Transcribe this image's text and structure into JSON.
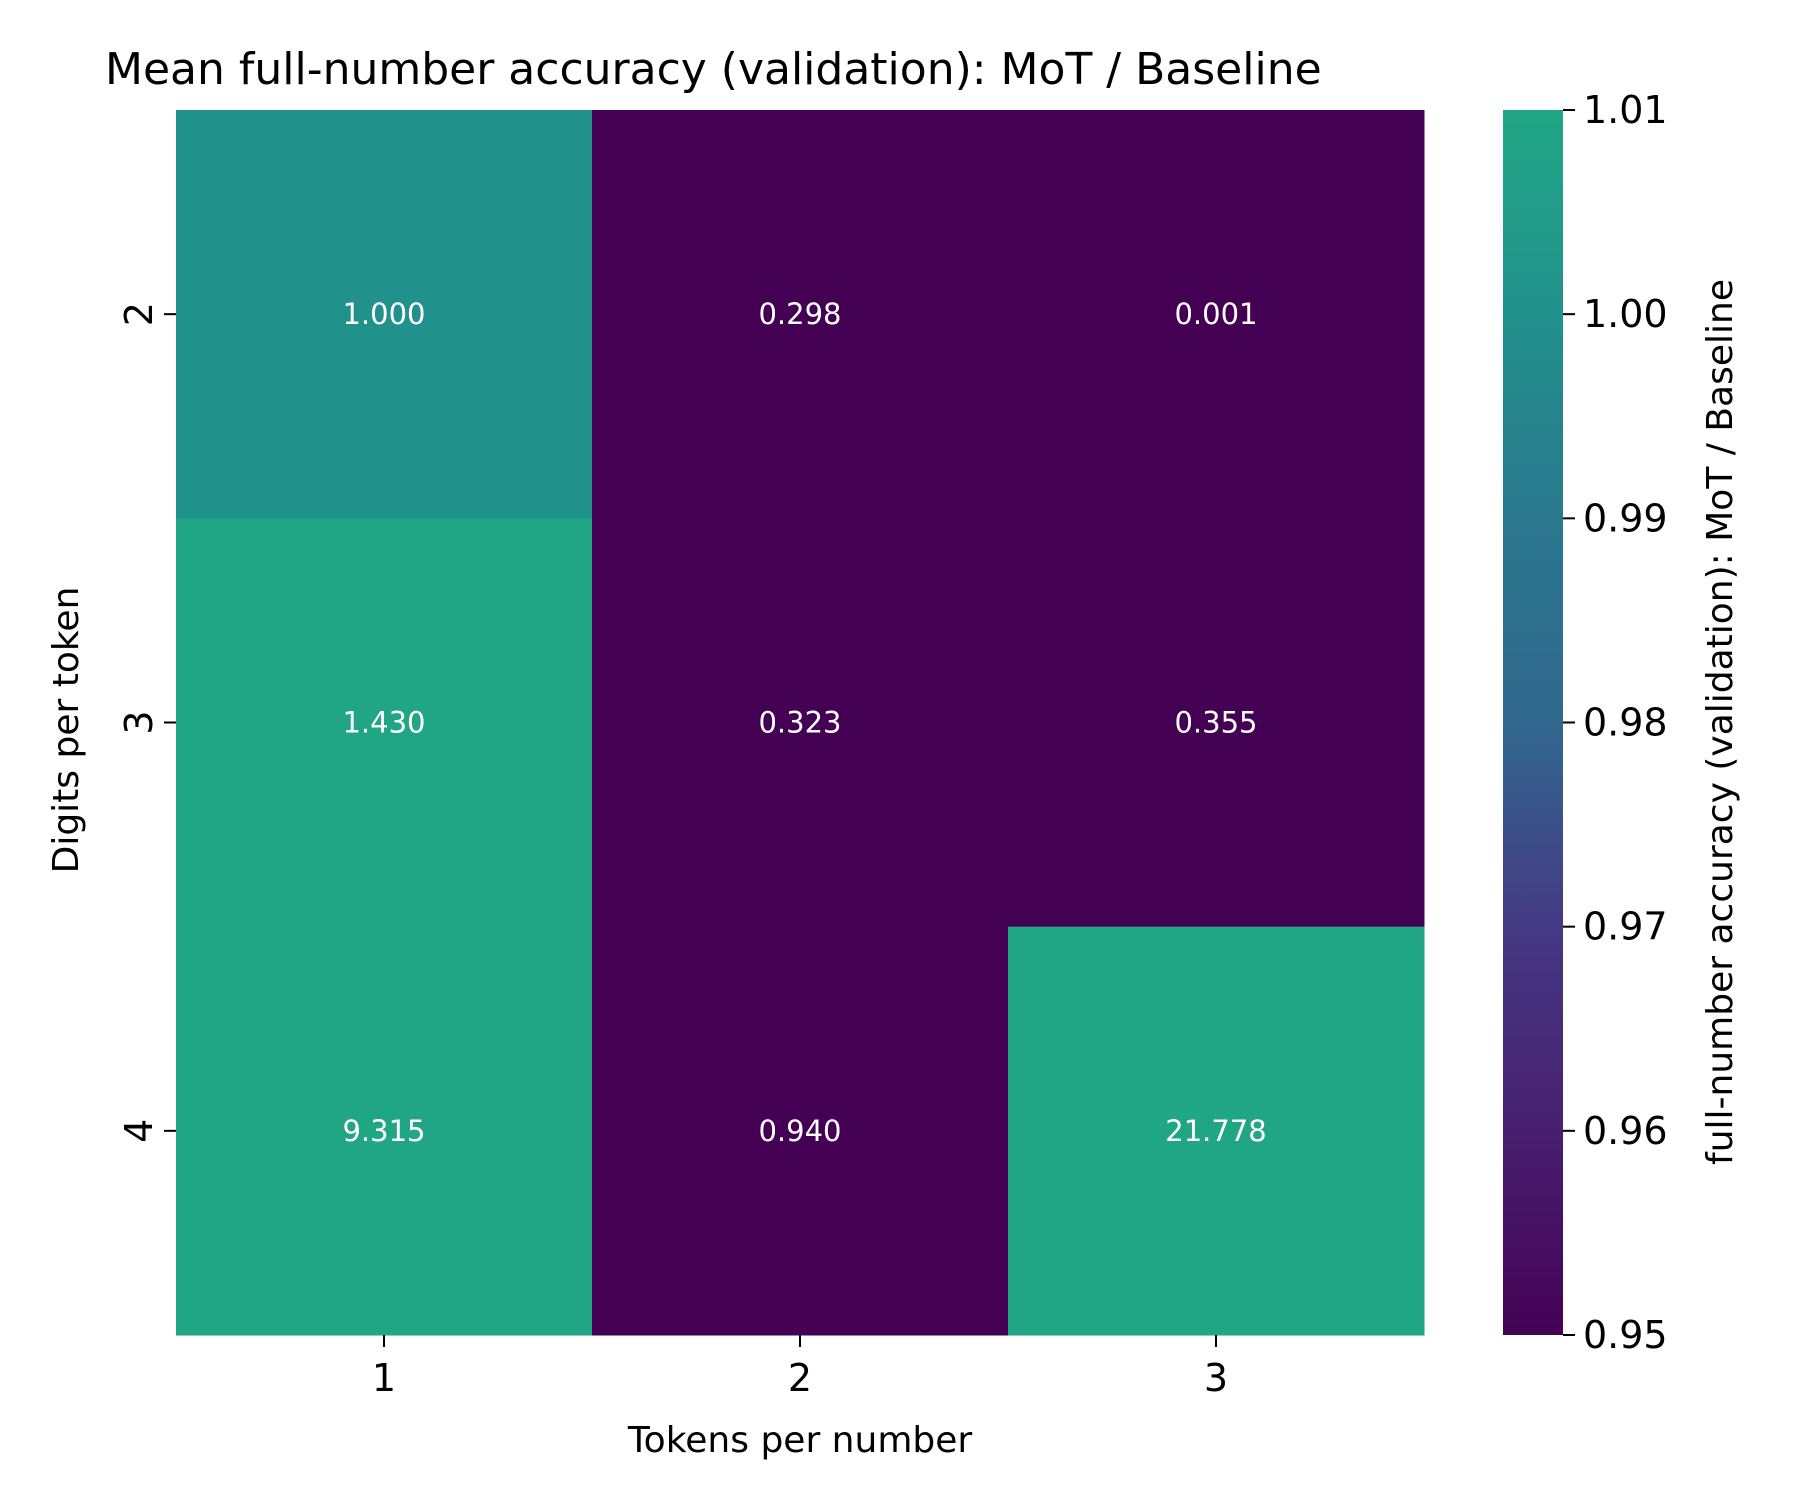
{
  "chart_data": {
    "type": "heatmap",
    "title": "Mean full-number accuracy (validation): MoT / Baseline",
    "xlabel": "Tokens per number",
    "ylabel": "Digits per token",
    "x_categories": [
      "1",
      "2",
      "3"
    ],
    "y_categories": [
      "2",
      "3",
      "4"
    ],
    "values": [
      [
        1.0,
        0.298,
        0.001
      ],
      [
        1.43,
        0.323,
        0.355
      ],
      [
        9.315,
        0.94,
        21.778
      ]
    ],
    "cell_labels": [
      [
        "1.000",
        "0.298",
        "0.001"
      ],
      [
        "1.430",
        "0.323",
        "0.355"
      ],
      [
        "9.315",
        "0.940",
        "21.778"
      ]
    ],
    "colormap": "viridis",
    "vmin": 0.95,
    "vmax": 1.01,
    "colorbar": {
      "label": "full-number accuracy (validation): MoT / Baseline",
      "ticks": [
        0.95,
        0.96,
        0.97,
        0.98,
        0.99,
        1.0,
        1.01
      ],
      "tick_labels": [
        "0.95",
        "0.96",
        "0.97",
        "0.98",
        "0.99",
        "1.00",
        "1.01"
      ]
    },
    "colors": {
      "low": "#440154",
      "high": "#21a685"
    }
  }
}
